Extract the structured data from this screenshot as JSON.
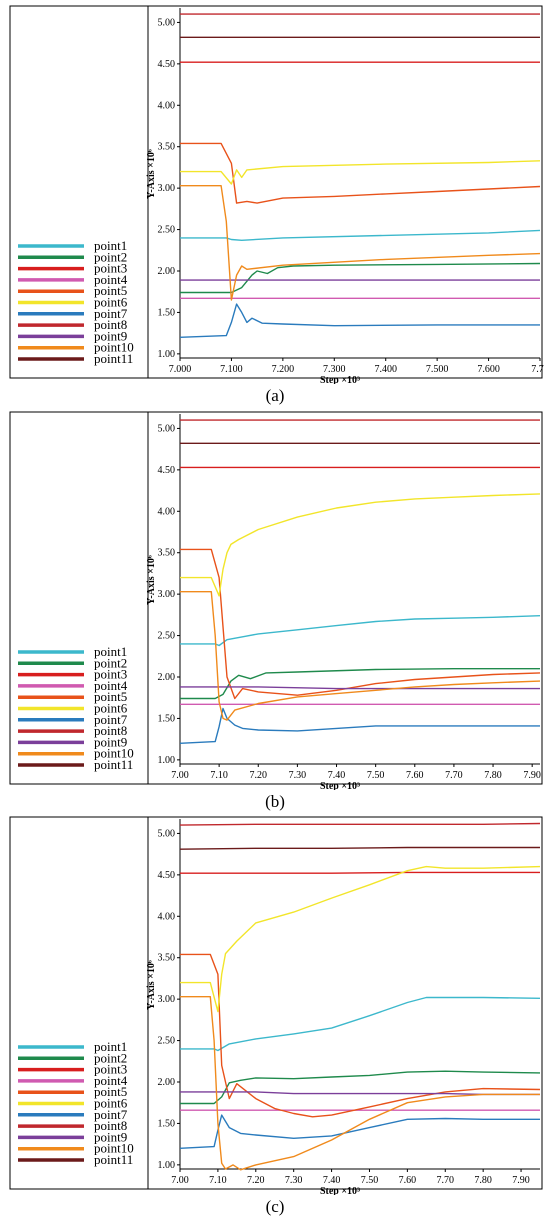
{
  "captions": [
    "(a)",
    "(b)",
    "(c)"
  ],
  "legend": {
    "colors": {
      "point1": "#3cb8cc",
      "point2": "#1f8a4c",
      "point3": "#d81e1e",
      "point4": "#d05ab0",
      "point5": "#e8521a",
      "point6": "#f2e52a",
      "point7": "#2a7bbd",
      "point8": "#c0282d",
      "point9": "#7b3f9a",
      "point10": "#f08a1c",
      "point11": "#6b1a1a"
    }
  },
  "chart_data": [
    {
      "type": "line",
      "xlabel": "Step ×10³",
      "ylabel": "Y-Axis ×10⁶",
      "xlim": [
        7.0,
        7.7
      ],
      "ylim": [
        0.95,
        5.15
      ],
      "xticks": [
        "7.000",
        "7.100",
        "7.200",
        "7.300",
        "7.400",
        "7.500",
        "7.600",
        "7.70"
      ],
      "xtick_values": [
        7.0,
        7.1,
        7.2,
        7.3,
        7.4,
        7.5,
        7.6,
        7.7
      ],
      "yticks": [
        "1.00",
        "1.50",
        "2.00",
        "2.50",
        "3.00",
        "3.50",
        "4.00",
        "4.50",
        "5.00"
      ],
      "ytick_values": [
        1.0,
        1.5,
        2.0,
        2.5,
        3.0,
        3.5,
        4.0,
        4.5,
        5.0
      ],
      "legend_position": "left",
      "series": [
        {
          "name": "point1",
          "x": [
            7.0,
            7.09,
            7.1,
            7.12,
            7.2,
            7.4,
            7.6,
            7.7
          ],
          "y": [
            2.4,
            2.4,
            2.38,
            2.37,
            2.4,
            2.43,
            2.46,
            2.49
          ]
        },
        {
          "name": "point2",
          "x": [
            7.0,
            7.08,
            7.1,
            7.12,
            7.14,
            7.15,
            7.17,
            7.19,
            7.22,
            7.3,
            7.5,
            7.7
          ],
          "y": [
            1.74,
            1.74,
            1.74,
            1.8,
            1.95,
            2.0,
            1.97,
            2.04,
            2.06,
            2.07,
            2.08,
            2.09
          ]
        },
        {
          "name": "point3",
          "x": [
            7.0,
            7.7
          ],
          "y": [
            4.52,
            4.52
          ]
        },
        {
          "name": "point4",
          "x": [
            7.0,
            7.7
          ],
          "y": [
            1.67,
            1.67
          ]
        },
        {
          "name": "point5",
          "x": [
            7.0,
            7.08,
            7.1,
            7.11,
            7.13,
            7.15,
            7.2,
            7.3,
            7.4,
            7.5,
            7.6,
            7.7
          ],
          "y": [
            3.54,
            3.54,
            3.3,
            2.82,
            2.84,
            2.82,
            2.88,
            2.9,
            2.93,
            2.96,
            2.99,
            3.02
          ]
        },
        {
          "name": "point6",
          "x": [
            7.0,
            7.08,
            7.1,
            7.11,
            7.12,
            7.13,
            7.2,
            7.4,
            7.6,
            7.7
          ],
          "y": [
            3.2,
            3.2,
            3.05,
            3.22,
            3.13,
            3.22,
            3.26,
            3.29,
            3.31,
            3.33
          ]
        },
        {
          "name": "point7",
          "x": [
            7.0,
            7.09,
            7.1,
            7.11,
            7.12,
            7.13,
            7.14,
            7.16,
            7.2,
            7.3,
            7.5,
            7.7
          ],
          "y": [
            1.2,
            1.22,
            1.38,
            1.6,
            1.5,
            1.38,
            1.43,
            1.37,
            1.36,
            1.34,
            1.35,
            1.35
          ]
        },
        {
          "name": "point8",
          "x": [
            7.0,
            7.7
          ],
          "y": [
            5.1,
            5.1
          ]
        },
        {
          "name": "point9",
          "x": [
            7.0,
            7.7
          ],
          "y": [
            1.89,
            1.89
          ]
        },
        {
          "name": "point10",
          "x": [
            7.0,
            7.08,
            7.09,
            7.1,
            7.11,
            7.12,
            7.13,
            7.2,
            7.4,
            7.6,
            7.7
          ],
          "y": [
            3.03,
            3.03,
            2.6,
            1.65,
            1.95,
            2.06,
            2.02,
            2.07,
            2.14,
            2.19,
            2.21
          ]
        },
        {
          "name": "point11",
          "x": [
            7.0,
            7.7
          ],
          "y": [
            4.82,
            4.82
          ]
        }
      ]
    },
    {
      "type": "line",
      "xlabel": "Step ×10³",
      "ylabel": "Y-Axis ×10⁶",
      "xlim": [
        7.0,
        7.92
      ],
      "ylim": [
        0.95,
        5.15
      ],
      "xticks": [
        "7.00",
        "7.10",
        "7.20",
        "7.30",
        "7.40",
        "7.50",
        "7.60",
        "7.70",
        "7.80",
        "7.90"
      ],
      "xtick_values": [
        7.0,
        7.1,
        7.2,
        7.3,
        7.4,
        7.5,
        7.6,
        7.7,
        7.8,
        7.9
      ],
      "yticks": [
        "1.00",
        "1.50",
        "2.00",
        "2.50",
        "3.00",
        "3.50",
        "4.00",
        "4.50",
        "5.00"
      ],
      "ytick_values": [
        1.0,
        1.5,
        2.0,
        2.5,
        3.0,
        3.5,
        4.0,
        4.5,
        5.0
      ],
      "legend_position": "left",
      "series": [
        {
          "name": "point1",
          "x": [
            7.0,
            7.09,
            7.1,
            7.12,
            7.2,
            7.3,
            7.4,
            7.5,
            7.6,
            7.7,
            7.8,
            7.92
          ],
          "y": [
            2.4,
            2.4,
            2.38,
            2.45,
            2.52,
            2.57,
            2.62,
            2.67,
            2.7,
            2.71,
            2.72,
            2.74
          ]
        },
        {
          "name": "point2",
          "x": [
            7.0,
            7.09,
            7.11,
            7.13,
            7.15,
            7.18,
            7.22,
            7.3,
            7.5,
            7.7,
            7.92
          ],
          "y": [
            1.74,
            1.74,
            1.79,
            1.95,
            2.02,
            1.98,
            2.05,
            2.06,
            2.09,
            2.1,
            2.1
          ]
        },
        {
          "name": "point3",
          "x": [
            7.0,
            7.92
          ],
          "y": [
            4.53,
            4.53
          ]
        },
        {
          "name": "point4",
          "x": [
            7.0,
            7.92
          ],
          "y": [
            1.67,
            1.67
          ]
        },
        {
          "name": "point5",
          "x": [
            7.0,
            7.08,
            7.1,
            7.12,
            7.14,
            7.16,
            7.2,
            7.3,
            7.4,
            7.5,
            7.6,
            7.7,
            7.8,
            7.92
          ],
          "y": [
            3.54,
            3.54,
            3.2,
            2.0,
            1.74,
            1.86,
            1.82,
            1.78,
            1.84,
            1.92,
            1.97,
            2.0,
            2.03,
            2.05
          ]
        },
        {
          "name": "point6",
          "x": [
            7.0,
            7.08,
            7.1,
            7.11,
            7.12,
            7.13,
            7.15,
            7.2,
            7.3,
            7.4,
            7.5,
            7.6,
            7.7,
            7.8,
            7.92
          ],
          "y": [
            3.2,
            3.2,
            2.98,
            3.3,
            3.5,
            3.6,
            3.66,
            3.78,
            3.93,
            4.04,
            4.11,
            4.15,
            4.17,
            4.19,
            4.21
          ]
        },
        {
          "name": "point7",
          "x": [
            7.0,
            7.09,
            7.1,
            7.11,
            7.12,
            7.14,
            7.16,
            7.2,
            7.3,
            7.5,
            7.7,
            7.92
          ],
          "y": [
            1.2,
            1.22,
            1.4,
            1.62,
            1.5,
            1.42,
            1.38,
            1.36,
            1.35,
            1.41,
            1.41,
            1.41
          ]
        },
        {
          "name": "point8",
          "x": [
            7.0,
            7.92
          ],
          "y": [
            5.1,
            5.1
          ]
        },
        {
          "name": "point9",
          "x": [
            7.0,
            7.2,
            7.4,
            7.6,
            7.8,
            7.92
          ],
          "y": [
            1.88,
            1.88,
            1.86,
            1.86,
            1.86,
            1.86
          ]
        },
        {
          "name": "point10",
          "x": [
            7.0,
            7.08,
            7.09,
            7.1,
            7.11,
            7.12,
            7.14,
            7.2,
            7.3,
            7.4,
            7.5,
            7.6,
            7.7,
            7.8,
            7.92
          ],
          "y": [
            3.03,
            3.03,
            2.5,
            1.7,
            1.5,
            1.48,
            1.6,
            1.68,
            1.76,
            1.8,
            1.84,
            1.88,
            1.91,
            1.93,
            1.95
          ]
        },
        {
          "name": "point11",
          "x": [
            7.0,
            7.92
          ],
          "y": [
            4.82,
            4.82
          ]
        }
      ]
    },
    {
      "type": "line",
      "xlabel": "Step ×10³",
      "ylabel": "Y-Axis ×10⁶",
      "xlim": [
        7.0,
        7.95
      ],
      "ylim": [
        0.95,
        5.15
      ],
      "xticks": [
        "7.00",
        "7.10",
        "7.20",
        "7.30",
        "7.40",
        "7.50",
        "7.60",
        "7.70",
        "7.80",
        "7.90"
      ],
      "xtick_values": [
        7.0,
        7.1,
        7.2,
        7.3,
        7.4,
        7.5,
        7.6,
        7.7,
        7.8,
        7.9
      ],
      "yticks": [
        "1.00",
        "1.50",
        "2.00",
        "2.50",
        "3.00",
        "3.50",
        "4.00",
        "4.50",
        "5.00"
      ],
      "ytick_values": [
        1.0,
        1.5,
        2.0,
        2.5,
        3.0,
        3.5,
        4.0,
        4.5,
        5.0
      ],
      "legend_position": "left",
      "series": [
        {
          "name": "point1",
          "x": [
            7.0,
            7.09,
            7.1,
            7.13,
            7.2,
            7.3,
            7.4,
            7.5,
            7.6,
            7.65,
            7.7,
            7.8,
            7.95
          ],
          "y": [
            2.4,
            2.4,
            2.38,
            2.46,
            2.52,
            2.58,
            2.65,
            2.8,
            2.96,
            3.02,
            3.02,
            3.02,
            3.01
          ]
        },
        {
          "name": "point2",
          "x": [
            7.0,
            7.09,
            7.11,
            7.13,
            7.16,
            7.2,
            7.3,
            7.4,
            7.5,
            7.6,
            7.7,
            7.8,
            7.95
          ],
          "y": [
            1.74,
            1.74,
            1.82,
            1.99,
            2.02,
            2.05,
            2.04,
            2.06,
            2.08,
            2.12,
            2.13,
            2.12,
            2.11
          ]
        },
        {
          "name": "point3",
          "x": [
            7.0,
            7.2,
            7.4,
            7.6,
            7.8,
            7.95
          ],
          "y": [
            4.52,
            4.52,
            4.52,
            4.53,
            4.53,
            4.53
          ]
        },
        {
          "name": "point4",
          "x": [
            7.0,
            7.95
          ],
          "y": [
            1.66,
            1.66
          ]
        },
        {
          "name": "point5",
          "x": [
            7.0,
            7.08,
            7.1,
            7.11,
            7.13,
            7.15,
            7.2,
            7.25,
            7.3,
            7.35,
            7.4,
            7.5,
            7.6,
            7.7,
            7.8,
            7.95
          ],
          "y": [
            3.54,
            3.54,
            3.3,
            2.2,
            1.8,
            1.98,
            1.8,
            1.68,
            1.62,
            1.58,
            1.6,
            1.7,
            1.8,
            1.88,
            1.92,
            1.91
          ]
        },
        {
          "name": "point6",
          "x": [
            7.0,
            7.08,
            7.1,
            7.11,
            7.12,
            7.15,
            7.2,
            7.3,
            7.4,
            7.5,
            7.6,
            7.65,
            7.7,
            7.8,
            7.95
          ],
          "y": [
            3.2,
            3.2,
            2.85,
            3.3,
            3.55,
            3.7,
            3.92,
            4.05,
            4.22,
            4.38,
            4.55,
            4.6,
            4.58,
            4.58,
            4.6
          ]
        },
        {
          "name": "point7",
          "x": [
            7.0,
            7.09,
            7.1,
            7.11,
            7.13,
            7.16,
            7.2,
            7.3,
            7.4,
            7.5,
            7.6,
            7.7,
            7.8,
            7.95
          ],
          "y": [
            1.2,
            1.22,
            1.42,
            1.6,
            1.45,
            1.38,
            1.36,
            1.32,
            1.35,
            1.45,
            1.55,
            1.56,
            1.55,
            1.55
          ]
        },
        {
          "name": "point8",
          "x": [
            7.0,
            7.2,
            7.4,
            7.6,
            7.8,
            7.95
          ],
          "y": [
            5.1,
            5.11,
            5.11,
            5.11,
            5.11,
            5.12
          ]
        },
        {
          "name": "point9",
          "x": [
            7.0,
            7.2,
            7.3,
            7.4,
            7.5,
            7.6,
            7.7,
            7.8,
            7.95
          ],
          "y": [
            1.88,
            1.88,
            1.86,
            1.86,
            1.86,
            1.86,
            1.86,
            1.85,
            1.85
          ]
        },
        {
          "name": "point10",
          "x": [
            7.0,
            7.08,
            7.09,
            7.1,
            7.11,
            7.12,
            7.14,
            7.16,
            7.2,
            7.3,
            7.4,
            7.5,
            7.6,
            7.7,
            7.8,
            7.95
          ],
          "y": [
            3.03,
            3.03,
            2.5,
            1.5,
            1.02,
            0.95,
            1.0,
            0.94,
            1.0,
            1.1,
            1.3,
            1.55,
            1.75,
            1.82,
            1.85,
            1.85
          ]
        },
        {
          "name": "point11",
          "x": [
            7.0,
            7.2,
            7.4,
            7.6,
            7.8,
            7.95
          ],
          "y": [
            4.81,
            4.82,
            4.82,
            4.83,
            4.83,
            4.83
          ]
        }
      ]
    }
  ]
}
